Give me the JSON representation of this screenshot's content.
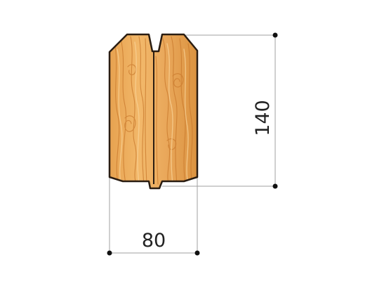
{
  "diagram": {
    "labels": {
      "width": "80",
      "height": "140"
    },
    "colors": {
      "wood_light": "#f0b567",
      "wood_mid": "#e29a45",
      "wood_dark": "#c5762a",
      "outline": "#2a1d12",
      "dimension_line": "#999999",
      "dot": "#111111",
      "text": "#222222"
    }
  }
}
